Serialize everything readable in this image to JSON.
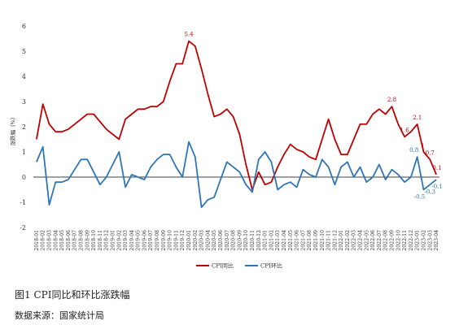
{
  "figure": {
    "caption": "图1 CPI同比和环比涨跌幅",
    "source": "数据来源：国家统计局"
  },
  "colors": {
    "yoy": "#c00000",
    "mom": "#2e75b6"
  },
  "chart_data": {
    "type": "line",
    "title": "",
    "ylabel": "涨跌幅（%）",
    "xlabel": "",
    "ylim": [
      -2,
      6
    ],
    "yticks": [
      -2,
      -1,
      0,
      1,
      2,
      3,
      4,
      5,
      6
    ],
    "grid": false,
    "legend": "bottom-center",
    "x": [
      "2018-01",
      "2018-02",
      "2018-03",
      "2018-04",
      "2018-05",
      "2018-06",
      "2018-07",
      "2018-08",
      "2018-09",
      "2018-10",
      "2018-11",
      "2018-12",
      "2019-01",
      "2019-02",
      "2019-03",
      "2019-04",
      "2019-05",
      "2019-06",
      "2019-07",
      "2019-08",
      "2019-09",
      "2019-10",
      "2019-11",
      "2019-12",
      "2020-01",
      "2020-02",
      "2020-03",
      "2020-04",
      "2020-05",
      "2020-06",
      "2020-07",
      "2020-08",
      "2020-09",
      "2020-10",
      "2020-11",
      "2020-12",
      "2021-01",
      "2021-02",
      "2021-03",
      "2021-04",
      "2021-05",
      "2021-06",
      "2021-07",
      "2021-08",
      "2021-09",
      "2021-10",
      "2021-11",
      "2021-12",
      "2022-01",
      "2022-02",
      "2022-03",
      "2022-04",
      "2022-05",
      "2022-06",
      "2022-07",
      "2022-08",
      "2022-09",
      "2022-10",
      "2022-11",
      "2022-12",
      "2023-01",
      "2023-02",
      "2023-03",
      "2023-04"
    ],
    "series": [
      {
        "name": "CPI同比",
        "values": [
          1.5,
          2.9,
          2.1,
          1.8,
          1.8,
          1.9,
          2.1,
          2.3,
          2.5,
          2.5,
          2.2,
          1.9,
          1.7,
          1.5,
          2.3,
          2.5,
          2.7,
          2.7,
          2.8,
          2.8,
          3.0,
          3.8,
          4.5,
          4.5,
          5.4,
          5.2,
          4.3,
          3.3,
          2.4,
          2.5,
          2.7,
          2.4,
          1.7,
          0.5,
          -0.5,
          0.2,
          -0.3,
          -0.2,
          0.4,
          0.9,
          1.3,
          1.1,
          1.0,
          0.8,
          0.7,
          1.5,
          2.3,
          1.5,
          0.9,
          0.9,
          1.5,
          2.1,
          2.1,
          2.5,
          2.7,
          2.5,
          2.8,
          2.1,
          1.6,
          1.8,
          2.1,
          1.0,
          0.7,
          0.1
        ]
      },
      {
        "name": "CPI环比",
        "values": [
          0.6,
          1.2,
          -1.1,
          -0.2,
          -0.2,
          -0.1,
          0.3,
          0.7,
          0.7,
          0.2,
          -0.3,
          0.0,
          0.5,
          1.0,
          -0.4,
          0.1,
          0.0,
          -0.1,
          0.4,
          0.7,
          0.9,
          0.9,
          0.4,
          0.0,
          1.4,
          0.8,
          -1.2,
          -0.9,
          -0.8,
          -0.1,
          0.6,
          0.4,
          0.2,
          -0.3,
          -0.6,
          0.7,
          1.0,
          0.6,
          -0.5,
          -0.3,
          -0.2,
          -0.4,
          0.3,
          0.1,
          0.0,
          0.7,
          0.4,
          -0.3,
          0.4,
          0.6,
          0.0,
          0.4,
          -0.2,
          0.0,
          0.5,
          -0.1,
          0.3,
          0.1,
          -0.2,
          0.0,
          0.8,
          -0.5,
          -0.3,
          -0.1
        ]
      }
    ],
    "annotations": [
      {
        "series": 0,
        "x": "2020-01",
        "text": "5.4"
      },
      {
        "series": 0,
        "x": "2022-09",
        "text": "2.8"
      },
      {
        "series": 0,
        "x": "2022-11",
        "text": "1.6"
      },
      {
        "series": 0,
        "x": "2023-01",
        "text": "2.1"
      },
      {
        "series": 0,
        "x": "2023-02",
        "text": "1"
      },
      {
        "series": 0,
        "x": "2023-03",
        "text": "0.7"
      },
      {
        "series": 0,
        "x": "2023-04",
        "text": "0.1"
      },
      {
        "series": 1,
        "x": "2023-01",
        "text": "0.8"
      },
      {
        "series": 1,
        "x": "2023-02",
        "text": "-0.5"
      },
      {
        "series": 1,
        "x": "2023-03",
        "text": "-0.3"
      },
      {
        "series": 1,
        "x": "2023-04",
        "text": "-0.1"
      }
    ]
  }
}
